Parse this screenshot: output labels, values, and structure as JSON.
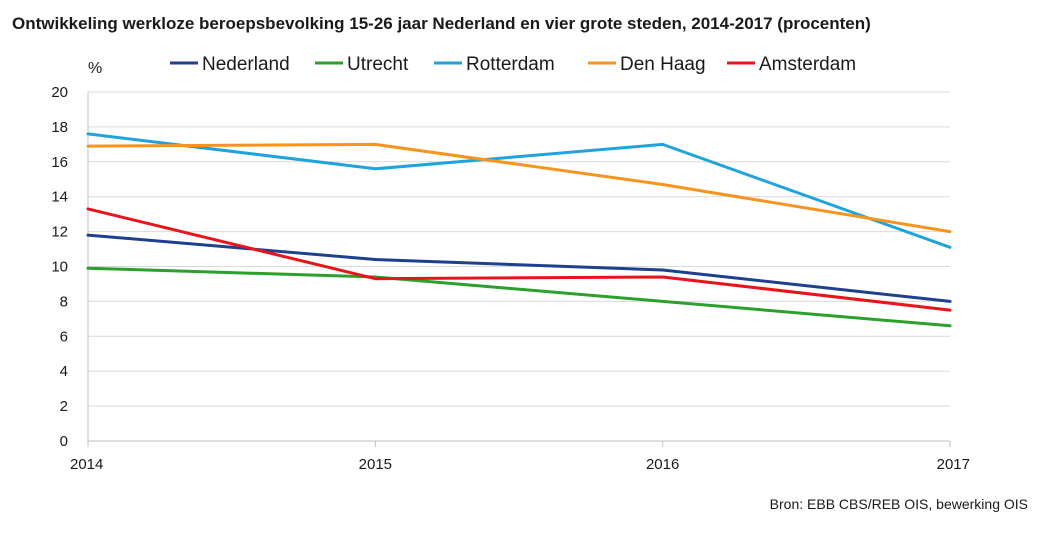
{
  "title": "Ontwikkeling werkloze beroepsbevolking 15-26 jaar Nederland en vier grote steden, 2014-2017 (procenten)",
  "source": "Bron: EBB CBS/REB OIS, bewerking OIS",
  "chart_data": {
    "type": "line",
    "title": "Ontwikkeling werkloze beroepsbevolking 15-26 jaar Nederland en vier grote steden, 2014-2017 (procenten)",
    "ylabel": "%",
    "xlabel": "",
    "x": [
      "2014",
      "2015",
      "2016",
      "2017"
    ],
    "ylim": [
      0,
      20
    ],
    "yticks": [
      0,
      2,
      4,
      6,
      8,
      10,
      12,
      14,
      16,
      18,
      20
    ],
    "grid": true,
    "legend_position": "top",
    "series": [
      {
        "name": "Nederland",
        "color": "#1f3f8f",
        "values": [
          11.8,
          10.4,
          9.8,
          8.0
        ]
      },
      {
        "name": "Utrecht",
        "color": "#2ca02c",
        "values": [
          9.9,
          9.4,
          8.0,
          6.6
        ]
      },
      {
        "name": "Rotterdam",
        "color": "#1fa3dc",
        "values": [
          17.6,
          15.6,
          17.0,
          11.1
        ]
      },
      {
        "name": "Den Haag",
        "color": "#f7941d",
        "values": [
          16.9,
          17.0,
          14.7,
          12.0
        ]
      },
      {
        "name": "Amsterdam",
        "color": "#e8141b",
        "values": [
          13.3,
          9.3,
          9.4,
          7.5
        ]
      }
    ]
  }
}
